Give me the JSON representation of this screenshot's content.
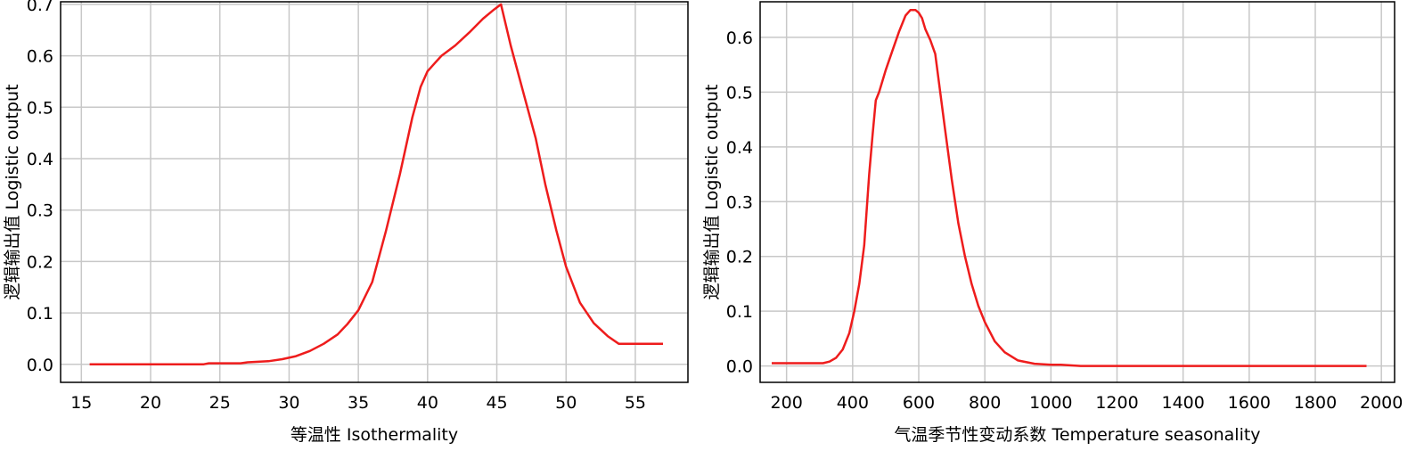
{
  "chart_data": [
    {
      "type": "line",
      "xlabel": "等温性 Isothermality",
      "ylabel": "逻辑输出值 Logistic output",
      "xlim": [
        13.5,
        58.8
      ],
      "ylim": [
        -0.035,
        0.705
      ],
      "xticks": [
        15,
        20,
        25,
        30,
        35,
        40,
        45,
        50,
        55
      ],
      "yticks": [
        0.0,
        0.1,
        0.2,
        0.3,
        0.4,
        0.5,
        0.6,
        0.7
      ],
      "ytick_labels": [
        "0.0",
        "0.1",
        "0.2",
        "0.3",
        "0.4",
        "0.5",
        "0.6",
        "0.7"
      ],
      "grid": true,
      "color": "#ee1c1c",
      "x": [
        15.6,
        23.8,
        24.2,
        26.5,
        27.0,
        28.5,
        29.5,
        30.5,
        31.5,
        32.5,
        33.5,
        34.2,
        35.0,
        36.0,
        37.0,
        38.0,
        38.9,
        39.5,
        40.0,
        40.5,
        41.0,
        42.0,
        43.0,
        44.0,
        44.8,
        45.3,
        46.0,
        47.0,
        47.8,
        48.5,
        49.3,
        50.0,
        51.0,
        52.0,
        53.0,
        53.8,
        55.0,
        57.0
      ],
      "y": [
        0.0,
        0.0,
        0.002,
        0.002,
        0.004,
        0.006,
        0.01,
        0.016,
        0.026,
        0.04,
        0.058,
        0.078,
        0.105,
        0.16,
        0.26,
        0.37,
        0.48,
        0.54,
        0.57,
        0.585,
        0.6,
        0.62,
        0.645,
        0.672,
        0.69,
        0.7,
        0.62,
        0.52,
        0.44,
        0.35,
        0.26,
        0.19,
        0.12,
        0.08,
        0.055,
        0.04,
        0.04,
        0.04
      ]
    },
    {
      "type": "line",
      "xlabel": "气温季节性变动系数 Temperature seasonality",
      "ylabel": "逻辑输出值 Logistic output",
      "xlim": [
        120,
        2040
      ],
      "ylim": [
        -0.03,
        0.665
      ],
      "xticks": [
        200,
        400,
        600,
        800,
        1000,
        1200,
        1400,
        1600,
        1800,
        2000
      ],
      "yticks": [
        0.0,
        0.1,
        0.2,
        0.3,
        0.4,
        0.5,
        0.6
      ],
      "ytick_labels": [
        "0.0",
        "0.1",
        "0.2",
        "0.3",
        "0.4",
        "0.5",
        "0.6"
      ],
      "grid": true,
      "color": "#ee1c1c",
      "x": [
        155,
        310,
        330,
        350,
        370,
        390,
        405,
        420,
        435,
        450,
        460,
        470,
        480,
        490,
        500,
        520,
        540,
        560,
        575,
        590,
        600,
        610,
        620,
        635,
        650,
        665,
        680,
        700,
        720,
        740,
        760,
        780,
        800,
        830,
        860,
        900,
        950,
        1000,
        1030,
        1090,
        1200,
        1500,
        1955
      ],
      "y": [
        0.005,
        0.005,
        0.008,
        0.015,
        0.03,
        0.06,
        0.1,
        0.15,
        0.22,
        0.35,
        0.42,
        0.485,
        0.5,
        0.52,
        0.54,
        0.575,
        0.61,
        0.64,
        0.65,
        0.65,
        0.645,
        0.635,
        0.615,
        0.595,
        0.57,
        0.5,
        0.43,
        0.34,
        0.26,
        0.2,
        0.15,
        0.11,
        0.08,
        0.045,
        0.025,
        0.01,
        0.004,
        0.002,
        0.002,
        0.0,
        0.0,
        0.0,
        0.0
      ]
    }
  ]
}
